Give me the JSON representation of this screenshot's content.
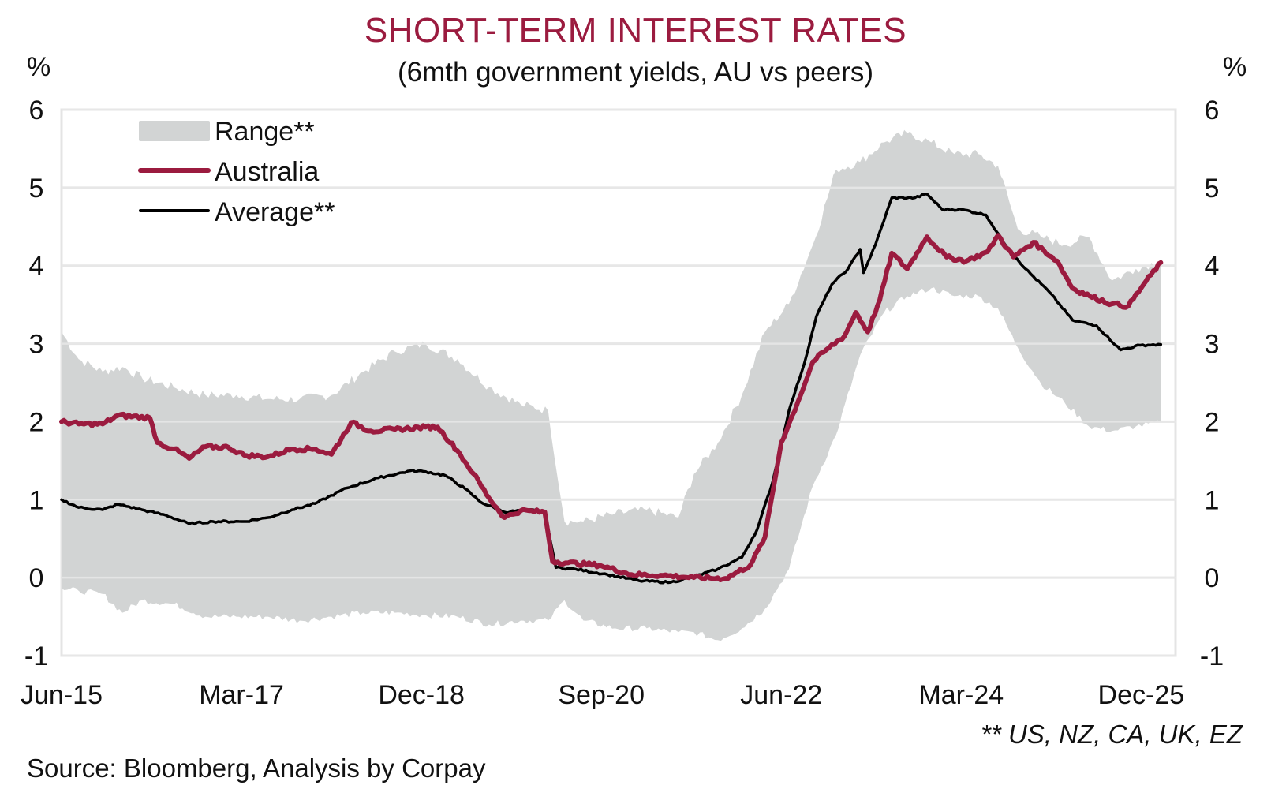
{
  "chart_data": {
    "type": "line",
    "title": "SHORT-TERM INTEREST RATES",
    "subtitle": "(6mth government yields, AU vs peers)",
    "ylabel_left": "%",
    "ylabel_right": "%",
    "xlabel": "",
    "x_unit": "months since Jun-15",
    "xlim": [
      0,
      130
    ],
    "ylim": [
      -1,
      6
    ],
    "y_ticks": [
      -1,
      0,
      1,
      2,
      3,
      4,
      5,
      6
    ],
    "y_tick_labels": [
      "-1",
      "0",
      "1",
      "2",
      "3",
      "4",
      "5",
      "6"
    ],
    "x_ticks": [
      0,
      21,
      42,
      63,
      84,
      105,
      126
    ],
    "x_tick_labels": [
      "Jun-15",
      "Mar-17",
      "Dec-18",
      "Sep-20",
      "Jun-22",
      "Mar-24",
      "Dec-25"
    ],
    "grid": true,
    "legend_position": "top-left",
    "colors": {
      "range": "#d2d4d4",
      "australia": "#9b1b3f",
      "average": "#000000",
      "grid": "#e4e4e4",
      "title": "#9b1b3f"
    },
    "range": {
      "name": "Range**",
      "x": [
        0,
        2,
        4.8,
        7.1,
        9.4,
        13.1,
        16.8,
        20.4,
        24.1,
        27.8,
        31.5,
        35.2,
        38.9,
        42.5,
        46.2,
        49.9,
        53.6,
        56.8,
        58.7,
        60.9,
        64.6,
        68.3,
        72,
        73.8,
        76.6,
        79.4,
        82.1,
        84.9,
        87.7,
        90.4,
        93.2,
        96,
        98.7,
        101.5,
        104.2,
        107,
        109.3,
        111.6,
        114.3,
        117.1,
        119.9,
        122.6,
        125.4,
        128.3
      ],
      "upper": [
        3.15,
        2.8,
        2.64,
        2.7,
        2.56,
        2.44,
        2.34,
        2.34,
        2.29,
        2.29,
        2.34,
        2.64,
        2.9,
        3.0,
        2.8,
        2.44,
        2.22,
        2.14,
        0.72,
        0.72,
        0.82,
        0.87,
        0.77,
        1.33,
        1.73,
        2.34,
        3.15,
        3.51,
        4.27,
        5.23,
        5.33,
        5.58,
        5.7,
        5.58,
        5.43,
        5.43,
        5.28,
        4.47,
        4.37,
        4.27,
        4.37,
        3.81,
        3.96,
        4.06
      ],
      "lower": [
        -0.14,
        -0.17,
        -0.21,
        -0.45,
        -0.29,
        -0.34,
        -0.5,
        -0.5,
        -0.5,
        -0.55,
        -0.5,
        -0.45,
        -0.45,
        -0.48,
        -0.5,
        -0.6,
        -0.55,
        -0.55,
        -0.29,
        -0.55,
        -0.65,
        -0.65,
        -0.7,
        -0.7,
        -0.8,
        -0.65,
        -0.4,
        0.11,
        1.18,
        1.83,
        2.85,
        3.4,
        3.61,
        3.71,
        3.61,
        3.61,
        3.45,
        2.95,
        2.49,
        2.24,
        1.94,
        1.88,
        1.94,
        1.99
      ]
    },
    "series": [
      {
        "name": "Australia",
        "x": [
          0,
          2,
          4.8,
          6.6,
          10.3,
          11.2,
          13.1,
          14.9,
          16.8,
          19.5,
          21.3,
          24.1,
          26.9,
          29.6,
          31.5,
          33.8,
          36.1,
          38.9,
          42.5,
          43.9,
          46.2,
          48.1,
          49.9,
          51.7,
          53.6,
          56.4,
          57.3,
          59.1,
          62.8,
          66.5,
          70.2,
          73.8,
          77.5,
          80.4,
          82.1,
          84.0,
          85.9,
          87.7,
          89.6,
          91.4,
          92.7,
          94.1,
          95.5,
          96.9,
          98.7,
          101.0,
          103.3,
          105.6,
          108.1,
          109.3,
          111.1,
          113.4,
          116.2,
          118.0,
          120.0,
          122.6,
          124.5,
          126.3,
          128.3
        ],
        "values": [
          2.0,
          1.97,
          1.97,
          2.08,
          2.05,
          1.73,
          1.65,
          1.53,
          1.68,
          1.67,
          1.57,
          1.55,
          1.65,
          1.65,
          1.58,
          1.99,
          1.88,
          1.9,
          1.93,
          1.93,
          1.63,
          1.33,
          1.02,
          0.77,
          0.86,
          0.84,
          0.21,
          0.19,
          0.16,
          0.04,
          0.03,
          0.0,
          -0.01,
          0.16,
          0.52,
          1.73,
          2.24,
          2.77,
          2.95,
          3.1,
          3.4,
          3.15,
          3.56,
          4.16,
          3.96,
          4.37,
          4.11,
          4.06,
          4.18,
          4.39,
          4.11,
          4.3,
          4.06,
          3.71,
          3.61,
          3.51,
          3.48,
          3.76,
          4.04
        ]
      },
      {
        "name": "Average**",
        "x": [
          0,
          2,
          4.8,
          6.6,
          9.4,
          12.2,
          14.9,
          17.7,
          21.3,
          24.1,
          26.9,
          29.6,
          33.3,
          37.0,
          40.7,
          42.5,
          44.8,
          47.1,
          48.9,
          51.7,
          54.5,
          56.4,
          57.7,
          60.0,
          63.7,
          67.4,
          71.1,
          73.8,
          76.6,
          79.4,
          81.2,
          83.0,
          84.9,
          86.7,
          88.1,
          89.9,
          91.8,
          93.2,
          93.6,
          95.0,
          96.9,
          99.6,
          101.0,
          102.8,
          105.1,
          107.9,
          109.8,
          112.5,
          115.3,
          118.0,
          120.8,
          123.6,
          125.9,
          128.3
        ],
        "values": [
          1.0,
          0.9,
          0.87,
          0.94,
          0.87,
          0.8,
          0.69,
          0.72,
          0.72,
          0.77,
          0.87,
          0.95,
          1.15,
          1.28,
          1.37,
          1.36,
          1.31,
          1.14,
          0.97,
          0.84,
          0.87,
          0.84,
          0.13,
          0.11,
          0.04,
          -0.04,
          -0.06,
          0.01,
          0.11,
          0.26,
          0.62,
          1.23,
          2.14,
          2.75,
          3.35,
          3.76,
          3.96,
          4.21,
          3.91,
          4.27,
          4.87,
          4.87,
          4.92,
          4.72,
          4.72,
          4.65,
          4.32,
          3.96,
          3.66,
          3.3,
          3.23,
          2.92,
          2.98,
          2.99
        ]
      }
    ],
    "legend": [
      "Range**",
      "Australia",
      "Average**"
    ],
    "source": "Source: Bloomberg, Analysis by Corpay",
    "footnote": "** US, NZ, CA, UK, EZ"
  }
}
